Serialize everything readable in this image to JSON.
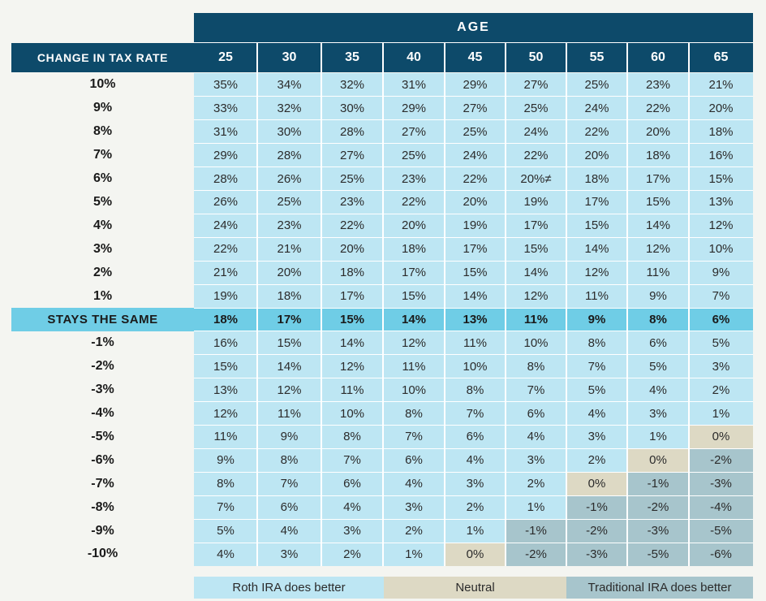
{
  "chart_data": {
    "type": "table",
    "column_group_header": "AGE",
    "row_header_title": "CHANGE IN TAX RATE",
    "columns": [
      "25",
      "30",
      "35",
      "40",
      "45",
      "50",
      "55",
      "60",
      "65"
    ],
    "rows": [
      {
        "label": "10%",
        "values": [
          "35%",
          "34%",
          "32%",
          "31%",
          "29%",
          "27%",
          "25%",
          "23%",
          "21%"
        ],
        "shading": [
          "roth",
          "roth",
          "roth",
          "roth",
          "roth",
          "roth",
          "roth",
          "roth",
          "roth"
        ]
      },
      {
        "label": "9%",
        "values": [
          "33%",
          "32%",
          "30%",
          "29%",
          "27%",
          "25%",
          "24%",
          "22%",
          "20%"
        ],
        "shading": [
          "roth",
          "roth",
          "roth",
          "roth",
          "roth",
          "roth",
          "roth",
          "roth",
          "roth"
        ]
      },
      {
        "label": "8%",
        "values": [
          "31%",
          "30%",
          "28%",
          "27%",
          "25%",
          "24%",
          "22%",
          "20%",
          "18%"
        ],
        "shading": [
          "roth",
          "roth",
          "roth",
          "roth",
          "roth",
          "roth",
          "roth",
          "roth",
          "roth"
        ]
      },
      {
        "label": "7%",
        "values": [
          "29%",
          "28%",
          "27%",
          "25%",
          "24%",
          "22%",
          "20%",
          "18%",
          "16%"
        ],
        "shading": [
          "roth",
          "roth",
          "roth",
          "roth",
          "roth",
          "roth",
          "roth",
          "roth",
          "roth"
        ]
      },
      {
        "label": "6%",
        "values": [
          "28%",
          "26%",
          "25%",
          "23%",
          "22%",
          "20%≠",
          "18%",
          "17%",
          "15%"
        ],
        "shading": [
          "roth",
          "roth",
          "roth",
          "roth",
          "roth",
          "roth",
          "roth",
          "roth",
          "roth"
        ]
      },
      {
        "label": "5%",
        "values": [
          "26%",
          "25%",
          "23%",
          "22%",
          "20%",
          "19%",
          "17%",
          "15%",
          "13%"
        ],
        "shading": [
          "roth",
          "roth",
          "roth",
          "roth",
          "roth",
          "roth",
          "roth",
          "roth",
          "roth"
        ]
      },
      {
        "label": "4%",
        "values": [
          "24%",
          "23%",
          "22%",
          "20%",
          "19%",
          "17%",
          "15%",
          "14%",
          "12%"
        ],
        "shading": [
          "roth",
          "roth",
          "roth",
          "roth",
          "roth",
          "roth",
          "roth",
          "roth",
          "roth"
        ]
      },
      {
        "label": "3%",
        "values": [
          "22%",
          "21%",
          "20%",
          "18%",
          "17%",
          "15%",
          "14%",
          "12%",
          "10%"
        ],
        "shading": [
          "roth",
          "roth",
          "roth",
          "roth",
          "roth",
          "roth",
          "roth",
          "roth",
          "roth"
        ]
      },
      {
        "label": "2%",
        "values": [
          "21%",
          "20%",
          "18%",
          "17%",
          "15%",
          "14%",
          "12%",
          "11%",
          "9%"
        ],
        "shading": [
          "roth",
          "roth",
          "roth",
          "roth",
          "roth",
          "roth",
          "roth",
          "roth",
          "roth"
        ]
      },
      {
        "label": "1%",
        "values": [
          "19%",
          "18%",
          "17%",
          "15%",
          "14%",
          "12%",
          "11%",
          "9%",
          "7%"
        ],
        "shading": [
          "roth",
          "roth",
          "roth",
          "roth",
          "roth",
          "roth",
          "roth",
          "roth",
          "roth"
        ]
      },
      {
        "label": "STAYS THE SAME",
        "highlight": true,
        "values": [
          "18%",
          "17%",
          "15%",
          "14%",
          "13%",
          "11%",
          "9%",
          "8%",
          "6%"
        ],
        "shading": [
          "same",
          "same",
          "same",
          "same",
          "same",
          "same",
          "same",
          "same",
          "same"
        ]
      },
      {
        "label": "-1%",
        "values": [
          "16%",
          "15%",
          "14%",
          "12%",
          "11%",
          "10%",
          "8%",
          "6%",
          "5%"
        ],
        "shading": [
          "roth",
          "roth",
          "roth",
          "roth",
          "roth",
          "roth",
          "roth",
          "roth",
          "roth"
        ]
      },
      {
        "label": "-2%",
        "values": [
          "15%",
          "14%",
          "12%",
          "11%",
          "10%",
          "8%",
          "7%",
          "5%",
          "3%"
        ],
        "shading": [
          "roth",
          "roth",
          "roth",
          "roth",
          "roth",
          "roth",
          "roth",
          "roth",
          "roth"
        ]
      },
      {
        "label": "-3%",
        "values": [
          "13%",
          "12%",
          "11%",
          "10%",
          "8%",
          "7%",
          "5%",
          "4%",
          "2%"
        ],
        "shading": [
          "roth",
          "roth",
          "roth",
          "roth",
          "roth",
          "roth",
          "roth",
          "roth",
          "roth"
        ]
      },
      {
        "label": "-4%",
        "values": [
          "12%",
          "11%",
          "10%",
          "8%",
          "7%",
          "6%",
          "4%",
          "3%",
          "1%"
        ],
        "shading": [
          "roth",
          "roth",
          "roth",
          "roth",
          "roth",
          "roth",
          "roth",
          "roth",
          "roth"
        ]
      },
      {
        "label": "-5%",
        "values": [
          "11%",
          "9%",
          "8%",
          "7%",
          "6%",
          "4%",
          "3%",
          "1%",
          "0%"
        ],
        "shading": [
          "roth",
          "roth",
          "roth",
          "roth",
          "roth",
          "roth",
          "roth",
          "roth",
          "neutral"
        ]
      },
      {
        "label": "-6%",
        "values": [
          "9%",
          "8%",
          "7%",
          "6%",
          "4%",
          "3%",
          "2%",
          "0%",
          "-2%"
        ],
        "shading": [
          "roth",
          "roth",
          "roth",
          "roth",
          "roth",
          "roth",
          "roth",
          "neutral",
          "trad"
        ]
      },
      {
        "label": "-7%",
        "values": [
          "8%",
          "7%",
          "6%",
          "4%",
          "3%",
          "2%",
          "0%",
          "-1%",
          "-3%"
        ],
        "shading": [
          "roth",
          "roth",
          "roth",
          "roth",
          "roth",
          "roth",
          "neutral",
          "trad",
          "trad"
        ]
      },
      {
        "label": "-8%",
        "values": [
          "7%",
          "6%",
          "4%",
          "3%",
          "2%",
          "1%",
          "-1%",
          "-2%",
          "-4%"
        ],
        "shading": [
          "roth",
          "roth",
          "roth",
          "roth",
          "roth",
          "roth",
          "trad",
          "trad",
          "trad"
        ]
      },
      {
        "label": "-9%",
        "values": [
          "5%",
          "4%",
          "3%",
          "2%",
          "1%",
          "-1%",
          "-2%",
          "-3%",
          "-5%"
        ],
        "shading": [
          "roth",
          "roth",
          "roth",
          "roth",
          "roth",
          "trad",
          "trad",
          "trad",
          "trad"
        ]
      },
      {
        "label": "-10%",
        "values": [
          "4%",
          "3%",
          "2%",
          "1%",
          "0%",
          "-2%",
          "-3%",
          "-5%",
          "-6%"
        ],
        "shading": [
          "roth",
          "roth",
          "roth",
          "roth",
          "neutral",
          "trad",
          "trad",
          "trad",
          "trad"
        ]
      }
    ],
    "legend": [
      {
        "key": "roth",
        "label": "Roth IRA does better"
      },
      {
        "key": "neutral",
        "label": "Neutral"
      },
      {
        "key": "trad",
        "label": "Traditional IRA does better"
      }
    ],
    "colors": {
      "header": "#0d4a6a",
      "roth": "#bde6f3",
      "neutral": "#ddd9c4",
      "trad": "#a7c5cc",
      "same": "#6fcde6",
      "background": "#f4f5f1"
    }
  }
}
